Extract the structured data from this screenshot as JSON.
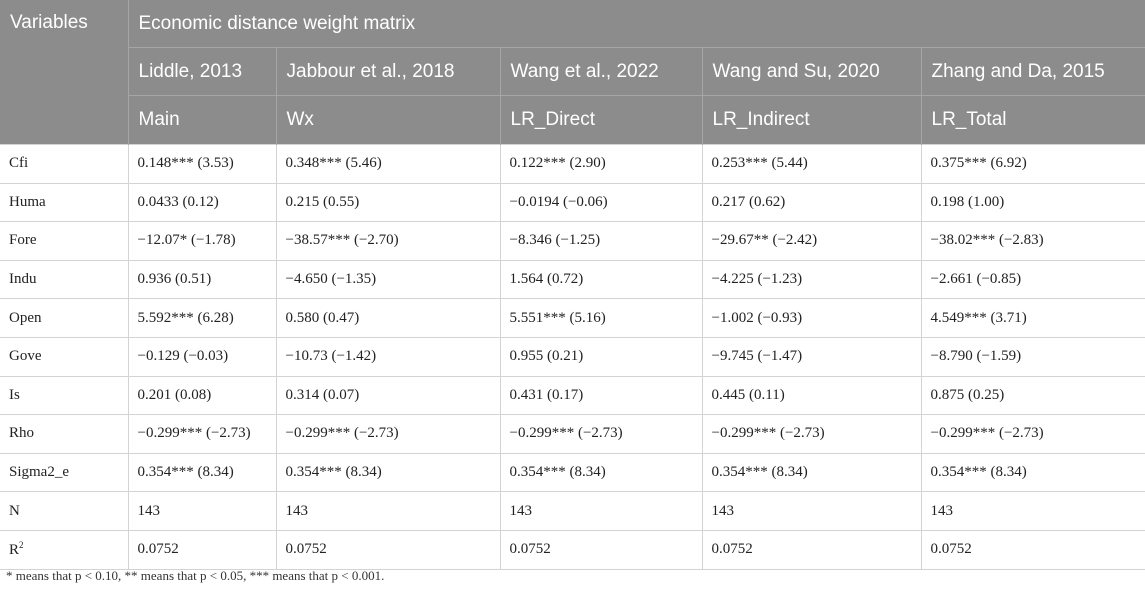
{
  "header": {
    "variables_label": "Variables",
    "group_title": "Economic distance weight matrix",
    "references": [
      "Liddle, 2013",
      "Jabbour et al., 2018",
      "Wang et al., 2022",
      "Wang and Su, 2020",
      "Zhang and Da, 2015"
    ],
    "columns": [
      "Main",
      "Wx",
      "LR_Direct",
      "LR_Indirect",
      "LR_Total"
    ]
  },
  "rows": [
    {
      "name": "Cfi",
      "cells": [
        "0.148*** (3.53)",
        "0.348*** (5.46)",
        "0.122*** (2.90)",
        "0.253*** (5.44)",
        "0.375*** (6.92)"
      ]
    },
    {
      "name": "Huma",
      "cells": [
        "0.0433 (0.12)",
        "0.215 (0.55)",
        "−0.0194 (−0.06)",
        "0.217 (0.62)",
        "0.198 (1.00)"
      ]
    },
    {
      "name": "Fore",
      "cells": [
        "−12.07* (−1.78)",
        "−38.57*** (−2.70)",
        "−8.346 (−1.25)",
        "−29.67** (−2.42)",
        "−38.02*** (−2.83)"
      ]
    },
    {
      "name": "Indu",
      "cells": [
        "0.936 (0.51)",
        "−4.650 (−1.35)",
        "1.564 (0.72)",
        "−4.225 (−1.23)",
        "−2.661 (−0.85)"
      ]
    },
    {
      "name": "Open",
      "cells": [
        "5.592*** (6.28)",
        "0.580 (0.47)",
        "5.551*** (5.16)",
        "−1.002 (−0.93)",
        "4.549*** (3.71)"
      ]
    },
    {
      "name": "Gove",
      "cells": [
        "−0.129 (−0.03)",
        "−10.73 (−1.42)",
        "0.955 (0.21)",
        "−9.745 (−1.47)",
        "−8.790 (−1.59)"
      ]
    },
    {
      "name": "Is",
      "cells": [
        "0.201 (0.08)",
        "0.314 (0.07)",
        "0.431 (0.17)",
        "0.445 (0.11)",
        "0.875 (0.25)"
      ]
    },
    {
      "name": "Rho",
      "cells": [
        "−0.299*** (−2.73)",
        "−0.299*** (−2.73)",
        "−0.299*** (−2.73)",
        "−0.299*** (−2.73)",
        "−0.299*** (−2.73)"
      ]
    },
    {
      "name": "Sigma2_e",
      "cells": [
        "0.354*** (8.34)",
        "0.354*** (8.34)",
        "0.354*** (8.34)",
        "0.354*** (8.34)",
        "0.354*** (8.34)"
      ]
    },
    {
      "name": "N",
      "cells": [
        "143",
        "143",
        "143",
        "143",
        "143"
      ]
    },
    {
      "name_base": "R",
      "name_sup": "2",
      "cells": [
        "0.0752",
        "0.0752",
        "0.0752",
        "0.0752",
        "0.0752"
      ]
    }
  ],
  "footnote": "* means that p < 0.10, ** means that p < 0.05, *** means that p < 0.001."
}
